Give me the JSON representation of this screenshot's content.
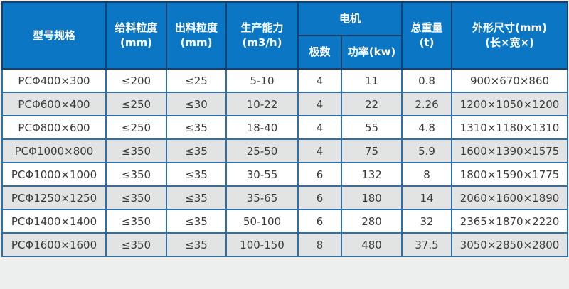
{
  "colors": {
    "page-bg": "#edefee",
    "header-bg": "#0b76c3",
    "header-border": "#16406e",
    "body-border": "#2d6fa6",
    "row-bg": "#ffffff",
    "row-alt-bg": "#e2e3e3",
    "header-text": "#ffffff",
    "body-text": "#3a3a3a"
  },
  "table": {
    "headers": {
      "model": "型号规格",
      "feed_size": "给料粒度\n(mm)",
      "output_size": "出料粒度\n(mm)",
      "capacity": "生产能力\n(m3/h)",
      "motor_group": "电机",
      "motor_poles": "极数",
      "motor_power": "功率(kw)",
      "total_weight": "总重量\n(t)",
      "dimensions": "外形尺寸(mm)\n(长×宽×)"
    },
    "column_keys": [
      "model",
      "feed_size",
      "output_size",
      "capacity",
      "motor_poles",
      "motor_power",
      "total_weight",
      "dimensions"
    ]
  },
  "chart_data": {
    "type": "table",
    "title": "",
    "columns": [
      "型号规格",
      "给料粒度(mm)",
      "出料粒度(mm)",
      "生产能力(m3/h)",
      "电机 极数",
      "电机 功率(kw)",
      "总重量(t)",
      "外形尺寸(mm)(长×宽×)"
    ],
    "column_groups": [
      {
        "label": "电机",
        "spans": [
          "极数",
          "功率(kw)"
        ]
      }
    ],
    "rows": [
      [
        "PCΦ400×300",
        "≤200",
        "≤25",
        "5-10",
        "4",
        "11",
        "0.8",
        "900×670×860"
      ],
      [
        "PCΦ600×400",
        "≤250",
        "≤30",
        "10-22",
        "4",
        "22",
        "2.26",
        "1200×1050×1200"
      ],
      [
        "PCΦ800×600",
        "≤250",
        "≤35",
        "18-40",
        "4",
        "55",
        "4.8",
        "1310×1180×1310"
      ],
      [
        "PCΦ1000×800",
        "≤350",
        "≤35",
        "25-50",
        "4",
        "75",
        "5.9",
        "1600×1390×1575"
      ],
      [
        "PCΦ1000×1000",
        "≤350",
        "≤35",
        "30-55",
        "6",
        "132",
        "8",
        "1800×1590×1775"
      ],
      [
        "PCΦ1250×1250",
        "≤350",
        "≤35",
        "35-65",
        "6",
        "180",
        "14",
        "2060×1600×1890"
      ],
      [
        "PCΦ1400×1400",
        "≤350",
        "≤35",
        "50-100",
        "6",
        "280",
        "32",
        "2365×1870×2220"
      ],
      [
        "PCΦ1600×1600",
        "≤350",
        "≤35",
        "100-150",
        "8",
        "480",
        "37.5",
        "3050×2850×2800"
      ]
    ]
  }
}
